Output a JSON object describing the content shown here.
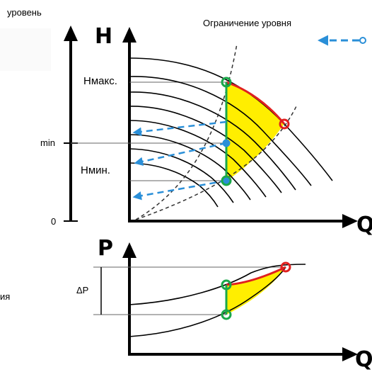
{
  "labels": {
    "top_left": "уровень",
    "top_right": "Ограничение уровня",
    "h_axis": "H",
    "hmax": "Нмакс.",
    "hmin": "Нмин.",
    "min": "min",
    "zero": "0",
    "q_axis_top": "Q",
    "p_axis": "P",
    "delta_p": "ΔP",
    "q_axis_bottom": "Q",
    "left_cut": "ия"
  },
  "colors": {
    "curve": "#000000",
    "fill": "#ffee00",
    "red_curve": "#e02020",
    "green_line": "#1aa84a",
    "blue_arrow": "#2a8fd8",
    "marker_red": "#e02020",
    "marker_green": "#1aa84a",
    "grid": "#666666"
  }
}
